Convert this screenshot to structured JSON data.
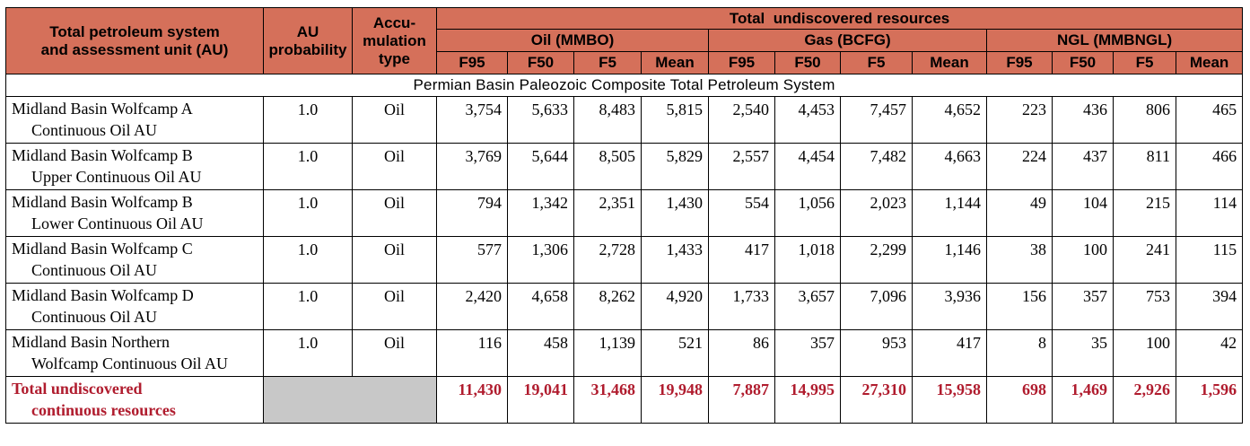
{
  "header": {
    "col_system": [
      "Total petroleum system",
      "and assessment unit (AU)"
    ],
    "col_prob": [
      "AU",
      "probability"
    ],
    "col_type": [
      "Accu-",
      "mulation",
      "type"
    ],
    "total_resources": "Total  undiscovered resources",
    "groups": [
      "Oil (MMBO)",
      "Gas (BCFG)",
      "NGL (MMBNGL)"
    ],
    "sub": [
      "F95",
      "F50",
      "F5",
      "Mean",
      "F95",
      "F50",
      "F5",
      "Mean",
      "F95",
      "F50",
      "F5",
      "Mean"
    ]
  },
  "system_title": "Permian Basin Paleozoic Composite Total Petroleum System",
  "rows": [
    {
      "name1": "Midland Basin Wolfcamp A",
      "name2": "Continuous Oil AU",
      "prob": "1.0",
      "type": "Oil",
      "values": [
        "3,754",
        "5,633",
        "8,483",
        "5,815",
        "2,540",
        "4,453",
        "7,457",
        "4,652",
        "223",
        "436",
        "806",
        "465"
      ]
    },
    {
      "name1": "Midland Basin Wolfcamp B",
      "name2": "Upper Continuous Oil AU",
      "prob": "1.0",
      "type": "Oil",
      "values": [
        "3,769",
        "5,644",
        "8,505",
        "5,829",
        "2,557",
        "4,454",
        "7,482",
        "4,663",
        "224",
        "437",
        "811",
        "466"
      ]
    },
    {
      "name1": "Midland Basin Wolfcamp B",
      "name2": "Lower Continuous Oil AU",
      "prob": "1.0",
      "type": "Oil",
      "values": [
        "794",
        "1,342",
        "2,351",
        "1,430",
        "554",
        "1,056",
        "2,023",
        "1,144",
        "49",
        "104",
        "215",
        "114"
      ]
    },
    {
      "name1": "Midland Basin Wolfcamp C",
      "name2": "Continuous Oil AU",
      "prob": "1.0",
      "type": "Oil",
      "values": [
        "577",
        "1,306",
        "2,728",
        "1,433",
        "417",
        "1,018",
        "2,299",
        "1,146",
        "38",
        "100",
        "241",
        "115"
      ]
    },
    {
      "name1": "Midland Basin Wolfcamp D",
      "name2": "Continuous Oil AU",
      "prob": "1.0",
      "type": "Oil",
      "values": [
        "2,420",
        "4,658",
        "8,262",
        "4,920",
        "1,733",
        "3,657",
        "7,096",
        "3,936",
        "156",
        "357",
        "753",
        "394"
      ]
    },
    {
      "name1": "Midland Basin Northern",
      "name2": "Wolfcamp Continuous Oil AU",
      "prob": "1.0",
      "type": "Oil",
      "values": [
        "116",
        "458",
        "1,139",
        "521",
        "86",
        "357",
        "953",
        "417",
        "8",
        "35",
        "100",
        "42"
      ]
    }
  ],
  "total": {
    "name1": "Total undiscovered",
    "name2": "continuous resources",
    "values": [
      "11,430",
      "19,041",
      "31,468",
      "19,948",
      "7,887",
      "14,995",
      "27,310",
      "15,958",
      "698",
      "1,469",
      "2,926",
      "1,596"
    ]
  },
  "colors": {
    "header_bg": "#d5705a",
    "total_text": "#b01c2e",
    "grey_cell": "#c8c8c8"
  }
}
